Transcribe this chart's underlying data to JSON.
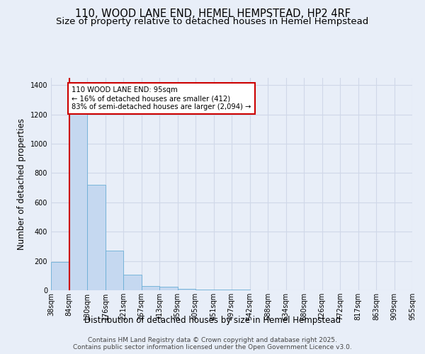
{
  "title": "110, WOOD LANE END, HEMEL HEMPSTEAD, HP2 4RF",
  "subtitle": "Size of property relative to detached houses in Hemel Hempstead",
  "xlabel": "Distribution of detached houses by size in Hemel Hempstead",
  "ylabel": "Number of detached properties",
  "bar_values": [
    193,
    1270,
    720,
    270,
    105,
    30,
    25,
    10,
    5,
    3,
    3,
    2,
    1,
    1,
    1,
    1,
    0,
    0,
    0,
    0
  ],
  "bin_labels": [
    "38sqm",
    "84sqm",
    "130sqm",
    "176sqm",
    "221sqm",
    "267sqm",
    "313sqm",
    "359sqm",
    "405sqm",
    "451sqm",
    "497sqm",
    "542sqm",
    "588sqm",
    "634sqm",
    "680sqm",
    "726sqm",
    "772sqm",
    "817sqm",
    "863sqm",
    "909sqm",
    "955sqm"
  ],
  "bar_color": "#c5d8f0",
  "bar_edge_color": "#6aaed6",
  "annotation_text": "110 WOOD LANE END: 95sqm\n← 16% of detached houses are smaller (412)\n83% of semi-detached houses are larger (2,094) →",
  "annotation_box_color": "#ffffff",
  "annotation_border_color": "#cc0000",
  "vline_color": "#cc0000",
  "ylim": [
    0,
    1450
  ],
  "yticks": [
    0,
    200,
    400,
    600,
    800,
    1000,
    1200,
    1400
  ],
  "bg_color": "#e8eef8",
  "footer_text": "Contains HM Land Registry data © Crown copyright and database right 2025.\nContains public sector information licensed under the Open Government Licence v3.0.",
  "grid_color": "#d0d8e8",
  "title_fontsize": 10.5,
  "subtitle_fontsize": 9.5,
  "tick_fontsize": 7,
  "label_fontsize": 8.5,
  "footer_fontsize": 6.5,
  "footer_color": "#444444"
}
